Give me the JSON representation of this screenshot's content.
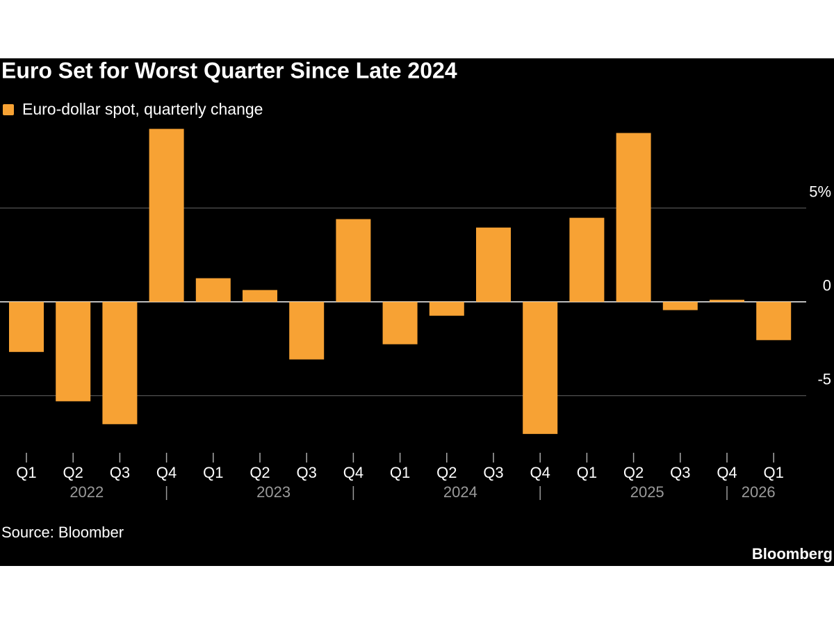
{
  "chart_data": {
    "type": "bar",
    "title": "Euro Set for Worst Quarter Since Late 2024",
    "legend_label": "Euro-dollar spot, quarterly change",
    "color": "#f7a234",
    "categories": [
      "Q1",
      "Q2",
      "Q3",
      "Q4",
      "Q1",
      "Q2",
      "Q3",
      "Q4",
      "Q1",
      "Q2",
      "Q3",
      "Q4",
      "Q1",
      "Q2",
      "Q3",
      "Q4",
      "Q1"
    ],
    "years": [
      "2022",
      "2023",
      "2024",
      "2025",
      "2026"
    ],
    "values": [
      -2.67,
      -5.3,
      -6.52,
      9.22,
      1.26,
      0.63,
      -3.07,
      4.41,
      -2.26,
      -0.74,
      3.96,
      -7.04,
      4.48,
      9.0,
      -0.44,
      0.11,
      -2.04
    ],
    "ylim": [
      -7.6,
      9.5
    ],
    "yticks": [
      {
        "value": 5,
        "label": "5%"
      },
      0,
      -5
    ],
    "grid": true,
    "source": "Source: Bloomber",
    "brand": "Bloomberg"
  }
}
